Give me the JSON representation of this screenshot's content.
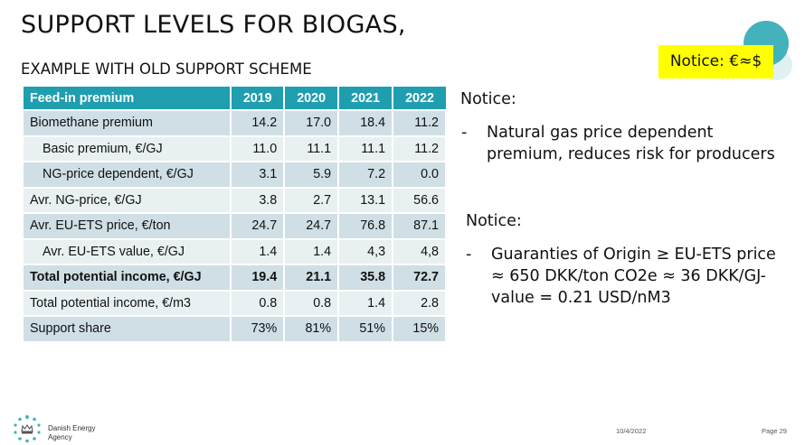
{
  "title": "SUPPORT LEVELS FOR BIOGAS,",
  "subtitle": "EXAMPLE WITH OLD SUPPORT SCHEME",
  "notice_badge": "Notice: €≈$",
  "table": {
    "headers": [
      "Feed-in premium",
      "2019",
      "2020",
      "2021",
      "2022"
    ],
    "rows": [
      {
        "label": "Biomethane premium",
        "values": [
          "14.2",
          "17.0",
          "18.4",
          "11.2"
        ]
      },
      {
        "label": "Basic premium, €/GJ",
        "values": [
          "11.0",
          "11.1",
          "11.1",
          "11.2"
        ]
      },
      {
        "label": "NG-price dependent, €/GJ",
        "values": [
          "3.1",
          "5.9",
          "7.2",
          "0.0"
        ]
      },
      {
        "label": "Avr. NG-price, €/GJ",
        "values": [
          "3.8",
          "2.7",
          "13.1",
          "56.6"
        ]
      },
      {
        "label": "Avr. EU-ETS price, €/ton",
        "values": [
          "24.7",
          "24.7",
          "76.8",
          "87.1"
        ]
      },
      {
        "label": "Avr. EU-ETS value, €/GJ",
        "values": [
          "1.4",
          "1.4",
          "4,3",
          "4,8"
        ]
      },
      {
        "label": "Total potential income, €/GJ",
        "values": [
          "19.4",
          "21.1",
          "35.8",
          "72.7"
        ]
      },
      {
        "label": "Total potential income, €/m3",
        "values": [
          "0.8",
          "0.8",
          "1.4",
          "2.8"
        ]
      },
      {
        "label": "Support share",
        "values": [
          "73%",
          "81%",
          "51%",
          "15%"
        ]
      }
    ]
  },
  "notice1": {
    "heading": "Notice:",
    "dash": "-",
    "line1": "Natural gas price dependent",
    "line2": "premium, reduces risk for producers"
  },
  "notice2": {
    "heading": "Notice:",
    "dash": "-",
    "line1": "Guaranties of Origin ≥ EU-ETS price",
    "line2": "≈ 650 DKK/ton CO2e ≈ 36 DKK/GJ-",
    "line3": "value = 0.21 USD/nM3"
  },
  "footer": {
    "org_line1": "Danish Energy",
    "org_line2": "Agency",
    "date": "10/4/2022",
    "page": "Page 29"
  },
  "colors": {
    "header_bg": "#1f9eb0",
    "row_dark": "#cfdfe5",
    "row_light": "#e9f0f2",
    "badge_bg": "#ffff00",
    "circle_big": "#44b2bc"
  }
}
